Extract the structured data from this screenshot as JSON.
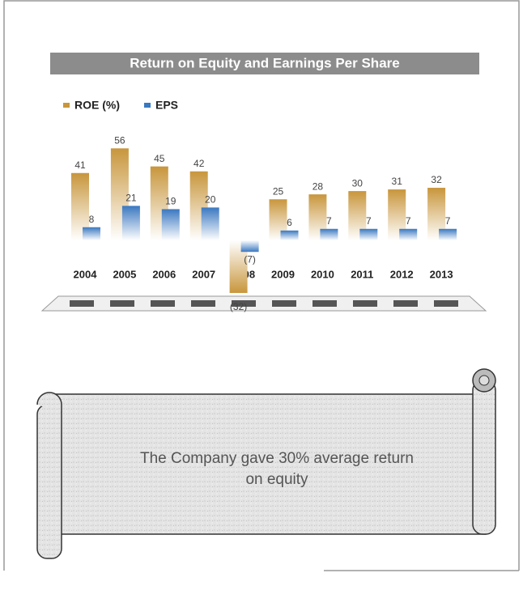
{
  "chart_data": {
    "type": "bar",
    "title": "Return on Equity and Earnings Per Share",
    "categories": [
      "2004",
      "2005",
      "2006",
      "2007",
      "2008",
      "2009",
      "2010",
      "2011",
      "2012",
      "2013"
    ],
    "series": [
      {
        "name": "ROE (%)",
        "color": "#c8963c",
        "values": [
          41,
          56,
          45,
          42,
          -32,
          25,
          28,
          30,
          31,
          32
        ],
        "value_labels": [
          "41",
          "56",
          "45",
          "42",
          "(32)",
          "25",
          "28",
          "30",
          "31",
          "32"
        ]
      },
      {
        "name": "EPS",
        "color": "#3a78c0",
        "values": [
          8,
          21,
          19,
          20,
          -7,
          6,
          7,
          7,
          7,
          7
        ],
        "value_labels": [
          "8",
          "21",
          "19",
          "20",
          "(7)",
          "6",
          "7",
          "7",
          "7",
          "7"
        ]
      }
    ],
    "legend": "top-left"
  },
  "note": {
    "lines": [
      "The Company gave 30% average return",
      "on equity"
    ]
  }
}
